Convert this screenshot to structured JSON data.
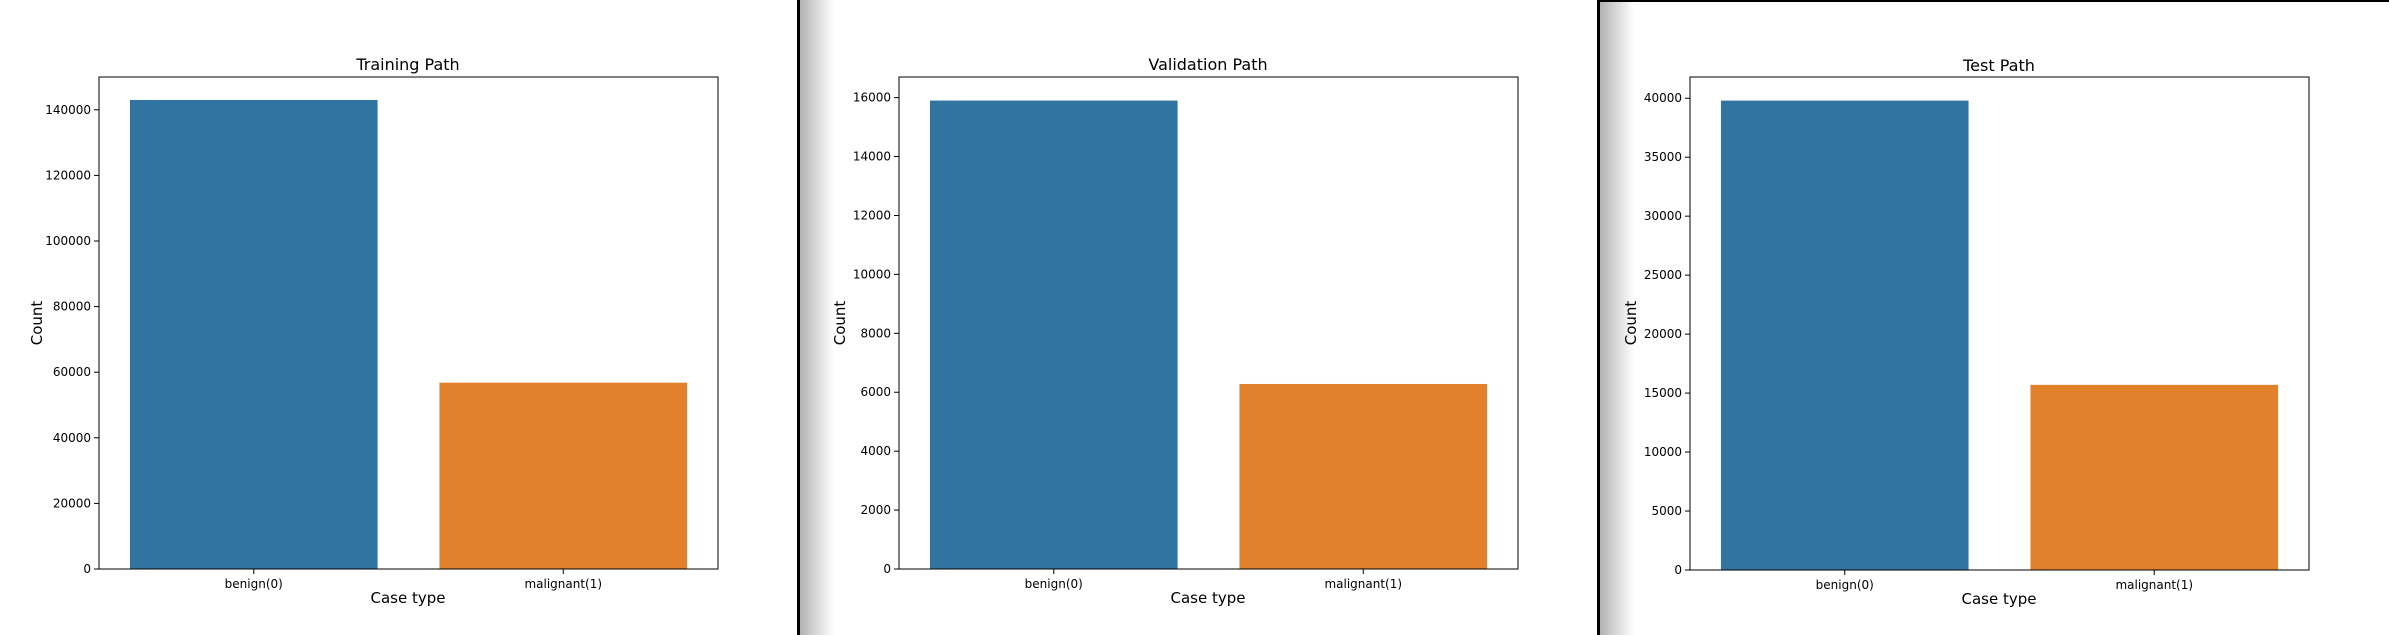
{
  "colors": {
    "benign": "#3274a1",
    "malignant": "#e1812c",
    "axis": "#000000",
    "background": "#ffffff"
  },
  "chart_data": [
    {
      "type": "bar",
      "title": "Training Path",
      "xlabel": "Case type",
      "ylabel": "Count",
      "categories": [
        "benign(0)",
        "malignant(1)"
      ],
      "values": [
        143000,
        56800
      ],
      "ylim": [
        0,
        150000
      ],
      "yticks": [
        0,
        20000,
        40000,
        60000,
        80000,
        100000,
        120000,
        140000
      ],
      "colors": [
        "#3274a1",
        "#e1812c"
      ],
      "grid": false
    },
    {
      "type": "bar",
      "title": "Validation Path",
      "xlabel": "Case type",
      "ylabel": "Count",
      "categories": [
        "benign(0)",
        "malignant(1)"
      ],
      "values": [
        15900,
        6280
      ],
      "ylim": [
        0,
        16700
      ],
      "yticks": [
        0,
        2000,
        4000,
        6000,
        8000,
        10000,
        12000,
        14000,
        16000
      ],
      "colors": [
        "#3274a1",
        "#e1812c"
      ],
      "grid": false
    },
    {
      "type": "bar",
      "title": "Test Path",
      "xlabel": "Case type",
      "ylabel": "Count",
      "categories": [
        "benign(0)",
        "malignant(1)"
      ],
      "values": [
        39800,
        15700
      ],
      "ylim": [
        0,
        41800
      ],
      "yticks": [
        0,
        5000,
        10000,
        15000,
        20000,
        25000,
        30000,
        35000,
        40000
      ],
      "colors": [
        "#3274a1",
        "#e1812c"
      ],
      "grid": false
    }
  ]
}
